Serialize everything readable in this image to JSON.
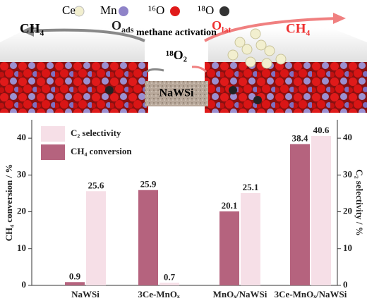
{
  "illustration": {
    "legend": [
      "Ce",
      "Mn",
      "¹⁶O",
      "¹⁸O"
    ],
    "left_product": "CH₄",
    "o_ads": {
      "base": "O",
      "sub": "ads"
    },
    "activation": "methane activation",
    "gas": "¹⁸O₂",
    "o_lat": {
      "base": "O",
      "sub": "lat"
    },
    "right_product": "CH₄",
    "support": "NaWSi"
  },
  "chart_data": {
    "type": "bar",
    "categories": [
      "NaWSi",
      "3Ce-MnOₓ",
      "MnOₓ/NaWSi",
      "3Ce-MnOₓ/NaWSi"
    ],
    "series": [
      {
        "name": "CH₄ conversion",
        "color": "#b5637e",
        "values": [
          0.9,
          25.9,
          20.1,
          38.4
        ]
      },
      {
        "name": "C₂ selectivity",
        "color": "#f6dfe7",
        "values": [
          25.6,
          0.7,
          25.1,
          40.6
        ],
        "axis": "y2"
      }
    ],
    "ylabel": "CH₄ conversion / %",
    "y2label": "C₂ selectivity / %",
    "ylim": [
      0,
      45
    ],
    "yticks": [
      0,
      10,
      20,
      30,
      40
    ],
    "y2lim": [
      0,
      45
    ],
    "y2ticks": [
      0,
      10,
      20,
      30,
      40
    ],
    "legend": "upper left"
  }
}
